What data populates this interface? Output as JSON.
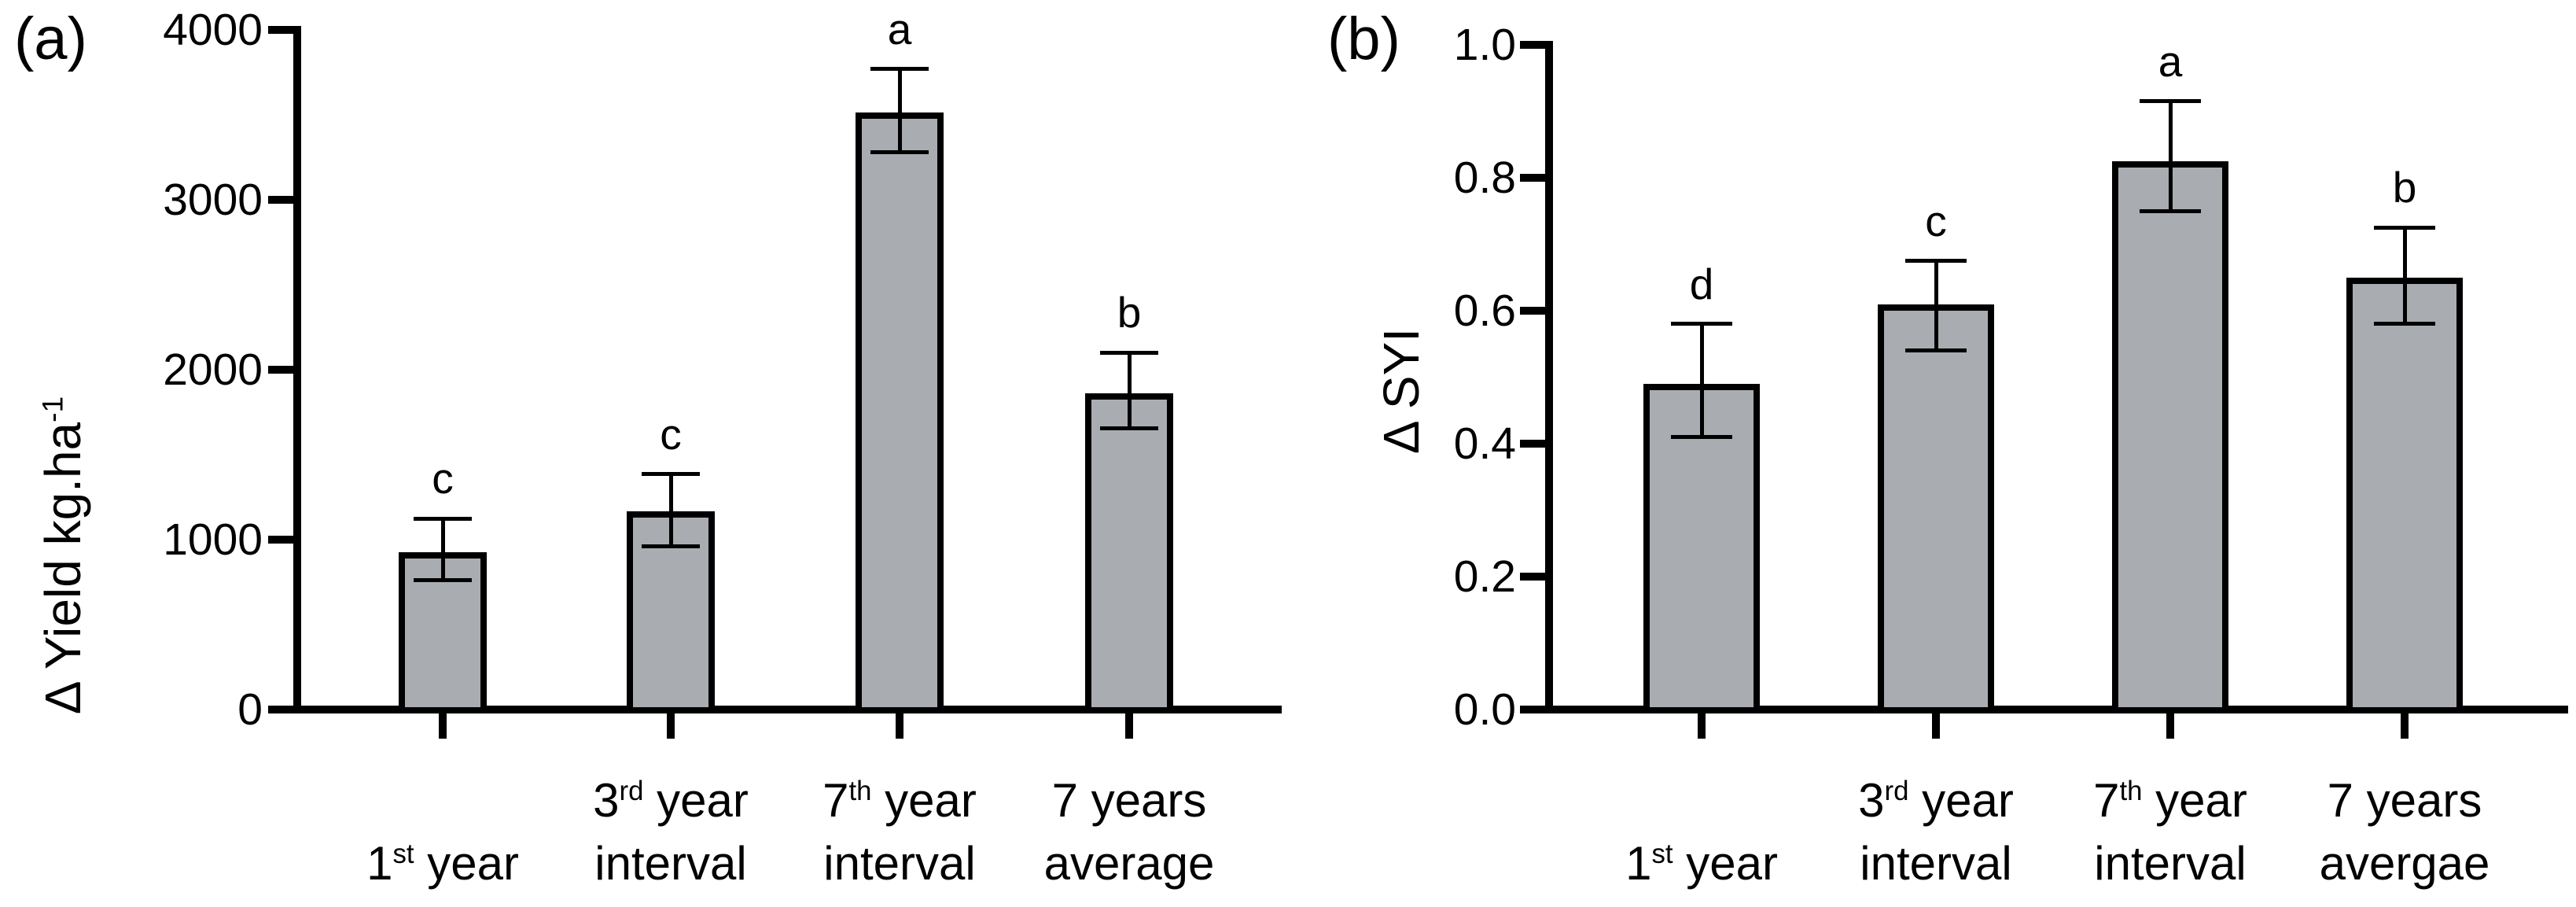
{
  "figure": {
    "background": "#ffffff",
    "text_color": "#000000"
  },
  "chart_data": [
    {
      "type": "bar",
      "panel_label": "(a)",
      "ylabel": {
        "pre": "Δ Yield kg.ha",
        "sup": "-1"
      },
      "ylim": [
        0,
        4000
      ],
      "ytick_labels": [
        "0",
        "1000",
        "2000",
        "3000",
        "4000"
      ],
      "grid": false,
      "legend": "none",
      "bar_fill": "#a9adb2",
      "bar_outline": "#000000",
      "categories": [
        {
          "key": "1st-year",
          "line1": {
            "pre": "1",
            "sup": "st",
            "post": " year"
          },
          "line2": ""
        },
        {
          "key": "3rd-year-interval",
          "line1": {
            "pre": "3",
            "sup": "rd",
            "post": " year"
          },
          "line2": "interval"
        },
        {
          "key": "7th-year-interval",
          "line1": {
            "pre": "7",
            "sup": "th",
            "post": " year"
          },
          "line2": "interval"
        },
        {
          "key": "7-years-average",
          "line1": {
            "pre": "7 years",
            "sup": "",
            "post": ""
          },
          "line2": "average"
        }
      ],
      "values": [
        925,
        1165,
        3515,
        1860
      ],
      "error_upper": [
        1125,
        1385,
        3770,
        2100
      ],
      "error_lower": [
        760,
        960,
        3280,
        1655
      ],
      "sig_letters": [
        "c",
        "c",
        "a",
        "b"
      ]
    },
    {
      "type": "bar",
      "panel_label": "(b)",
      "ylabel": {
        "pre": "Δ SYI",
        "sup": ""
      },
      "ylim": [
        0,
        1.0
      ],
      "ytick_labels": [
        "0.0",
        "0.2",
        "0.4",
        "0.6",
        "0.8",
        "1.0"
      ],
      "grid": false,
      "legend": "none",
      "bar_fill": "#a9adb2",
      "bar_outline": "#000000",
      "categories": [
        {
          "key": "1st-year",
          "line1": {
            "pre": "1",
            "sup": "st",
            "post": " year"
          },
          "line2": ""
        },
        {
          "key": "3rd-year-interval",
          "line1": {
            "pre": "3",
            "sup": "rd",
            "post": " year"
          },
          "line2": "interval"
        },
        {
          "key": "7th-year-interval",
          "line1": {
            "pre": "7",
            "sup": "th",
            "post": " year"
          },
          "line2": "interval"
        },
        {
          "key": "7-years-avergae",
          "line1": {
            "pre": "7 years",
            "sup": "",
            "post": ""
          },
          "line2": "avergae"
        }
      ],
      "values": [
        0.49,
        0.61,
        0.825,
        0.65
      ],
      "error_upper": [
        0.58,
        0.675,
        0.915,
        0.725
      ],
      "error_lower": [
        0.41,
        0.54,
        0.75,
        0.58
      ],
      "sig_letters": [
        "d",
        "c",
        "a",
        "b"
      ]
    }
  ]
}
